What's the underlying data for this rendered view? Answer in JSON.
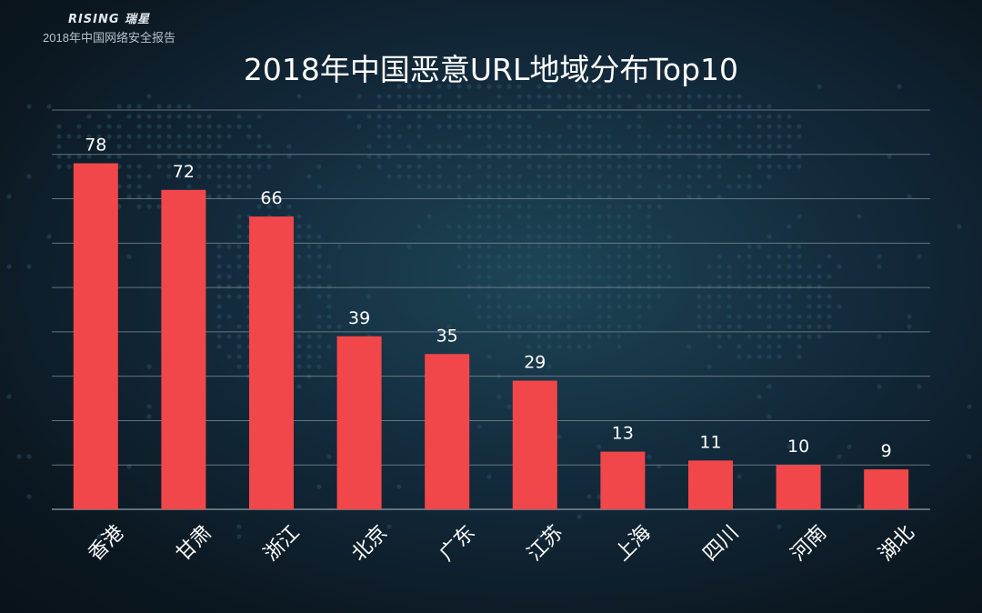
{
  "brand": {
    "logo_text": "RISING 瑞星",
    "report_name": "2018年中国网络安全报告"
  },
  "colors": {
    "bar": "#f2474a",
    "text": "#ffffff",
    "grid": "#8a97a0"
  },
  "chart_data": {
    "type": "bar",
    "title": "2018年中国恶意URL地域分布Top10",
    "categories": [
      "香港",
      "甘肃",
      "浙江",
      "北京",
      "广东",
      "江苏",
      "上海",
      "四川",
      "河南",
      "湖北"
    ],
    "values": [
      78,
      72,
      66,
      39,
      35,
      29,
      13,
      11,
      10,
      9
    ],
    "ylim": [
      0,
      90
    ],
    "grid": true,
    "data_labels": true,
    "xlabel": "",
    "ylabel": ""
  }
}
